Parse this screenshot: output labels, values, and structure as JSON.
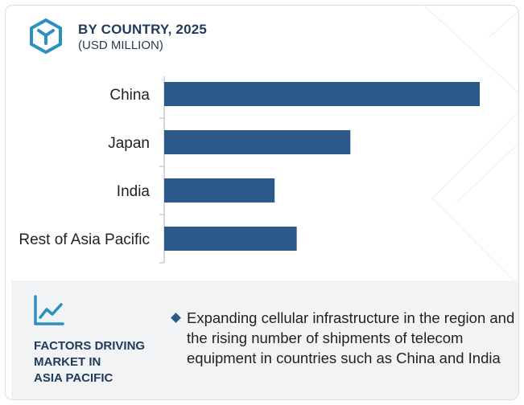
{
  "header": {
    "title": "BY COUNTRY, 2025",
    "subtitle": "(USD MILLION)"
  },
  "colors": {
    "bar": "#2b5a8a",
    "accent": "#2a8fc1",
    "text_dark": "#1f3a5a"
  },
  "chart_data": {
    "type": "bar",
    "orientation": "horizontal",
    "title": "BY COUNTRY, 2025",
    "subtitle": "(USD MILLION)",
    "categories": [
      "China",
      "Japan",
      "India",
      "Rest of Asia Pacific"
    ],
    "values": [
      100,
      59,
      35,
      42
    ],
    "xlim": [
      0,
      100
    ],
    "grid": false,
    "legend": "none"
  },
  "factors": {
    "icon": "trend-chart-icon",
    "title_lines": [
      "FACTORS DRIVING",
      "MARKET IN",
      "ASIA PACIFIC"
    ],
    "bullets": [
      "Expanding cellular infrastructure in the region and the rising number of shipments of telecom equipment in countries such as China and India"
    ]
  }
}
